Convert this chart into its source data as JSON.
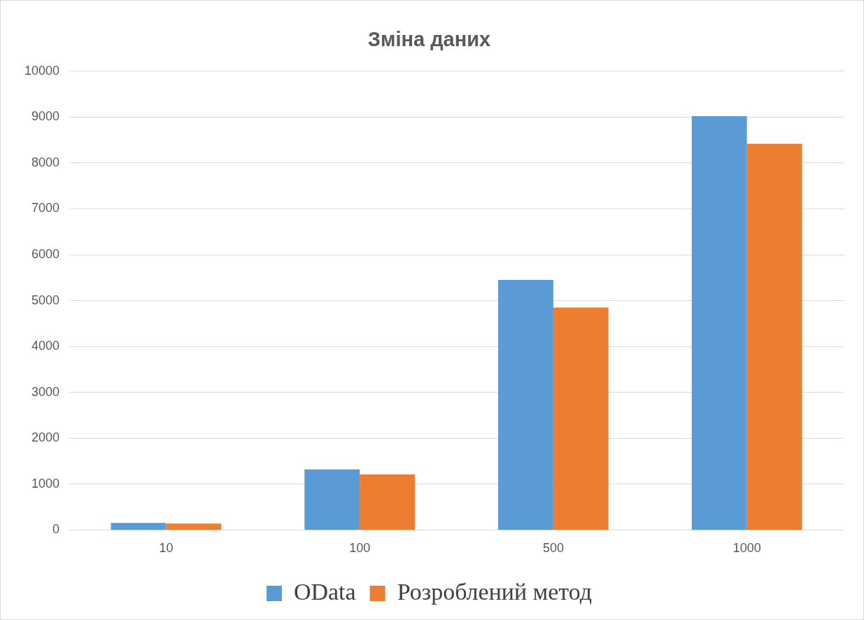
{
  "chart_data": {
    "type": "bar",
    "title": "Зміна даних",
    "categories": [
      "10",
      "100",
      "500",
      "1000"
    ],
    "series": [
      {
        "name": "OData",
        "color": "#5b9bd5",
        "values": [
          155,
          1320,
          5450,
          9020
        ]
      },
      {
        "name": "Розроблений метод",
        "color": "#ed7d31",
        "values": [
          140,
          1210,
          4850,
          8420
        ]
      }
    ],
    "ylim": [
      0,
      10000
    ],
    "yticks": [
      0,
      1000,
      2000,
      3000,
      4000,
      5000,
      6000,
      7000,
      8000,
      9000,
      10000
    ],
    "grid": "y",
    "legend": "bottom"
  }
}
